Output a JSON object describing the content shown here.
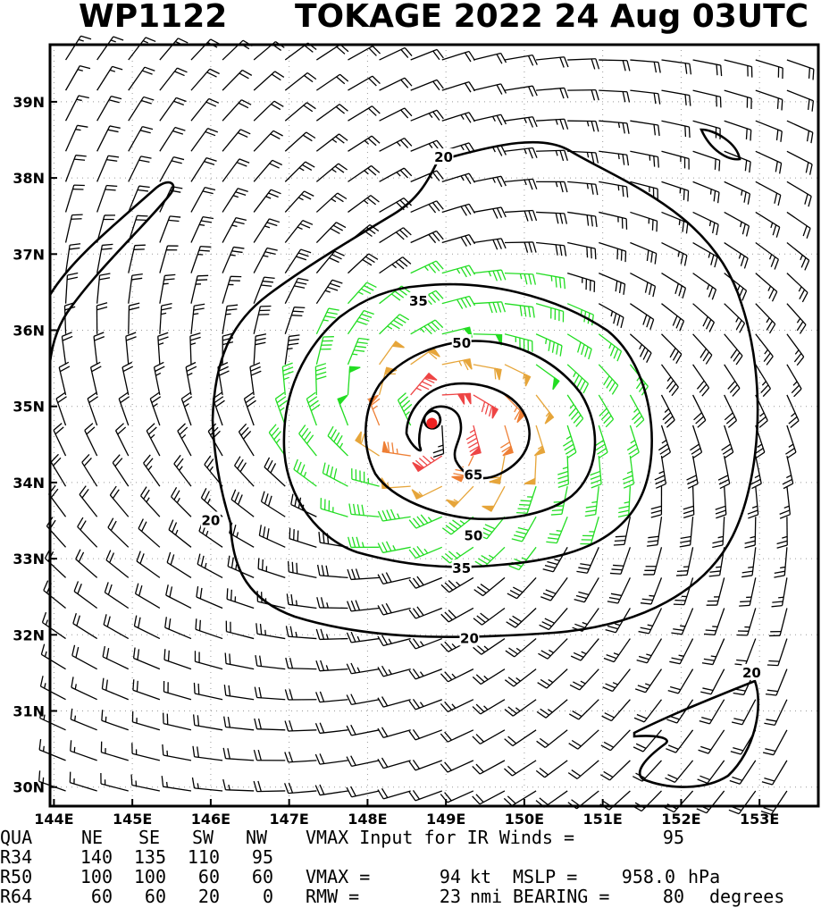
{
  "chart_data": {
    "type": "wind-barb-contour-map",
    "storm_id": "WP1122",
    "title": "TOKAGE 2022 24 Aug 03UTC",
    "x_ticks": [
      "144E",
      "145E",
      "146E",
      "147E",
      "148E",
      "149E",
      "150E",
      "151E",
      "152E",
      "153E"
    ],
    "y_ticks": [
      "39N",
      "38N",
      "37N",
      "36N",
      "35N",
      "34N",
      "33N",
      "32N",
      "31N",
      "30N"
    ],
    "lon_range": [
      143.95,
      153.75
    ],
    "lat_range": [
      29.75,
      39.75
    ],
    "center": {
      "lon": 148.82,
      "lat": 34.78
    },
    "contour_levels": [
      "20",
      "35",
      "50",
      "65",
      "20",
      "35",
      "50",
      "65",
      "20"
    ],
    "contour_labels": [
      {
        "text": "20",
        "lon": 148.97,
        "lat": 38.27
      },
      {
        "text": "35",
        "lon": 148.65,
        "lat": 36.38
      },
      {
        "text": "50",
        "lon": 149.2,
        "lat": 35.83
      },
      {
        "text": "65",
        "lon": 149.35,
        "lat": 34.1
      },
      {
        "text": "50",
        "lon": 149.35,
        "lat": 33.3
      },
      {
        "text": "35",
        "lon": 149.2,
        "lat": 32.87
      },
      {
        "text": "20",
        "lon": 149.3,
        "lat": 31.95
      },
      {
        "text": "20",
        "lon": 146.0,
        "lat": 33.5
      },
      {
        "text": "20",
        "lon": 152.9,
        "lat": 31.5
      }
    ],
    "wind_color_bins": [
      {
        "min": 0,
        "max": 34,
        "color": "#000000"
      },
      {
        "min": 34,
        "max": 50,
        "color": "#22dd22"
      },
      {
        "min": 50,
        "max": 64,
        "color": "#e6a53a"
      },
      {
        "min": 64,
        "max": 80,
        "color": "#ee7f35"
      },
      {
        "min": 80,
        "max": 200,
        "color": "#ee4444"
      }
    ],
    "center_color": "#ee2222"
  },
  "stats": {
    "row_labels": [
      "QUA",
      "R34",
      "R50",
      "R64"
    ],
    "quadrant_headers": [
      "NE",
      "SE",
      "SW",
      "NW"
    ],
    "r34": [
      "140",
      "135",
      "110",
      "95"
    ],
    "r50": [
      "100",
      "100",
      "60",
      "60"
    ],
    "r64": [
      "60",
      "60",
      "20",
      "0"
    ],
    "vmax_ir_label": "VMAX Input for IR Winds =",
    "vmax_ir_value": "95",
    "vmax_label": "VMAX =",
    "vmax_value": "94",
    "vmax_unit": "kt",
    "mslp_label": "MSLP =",
    "mslp_value": "958.0",
    "mslp_unit": "hPa",
    "rmw_label": "RMW =",
    "rmw_value": "23",
    "rmw_unit": "nmi",
    "bearing_label": "BEARING =",
    "bearing_value": "80",
    "bearing_unit": "degrees"
  }
}
